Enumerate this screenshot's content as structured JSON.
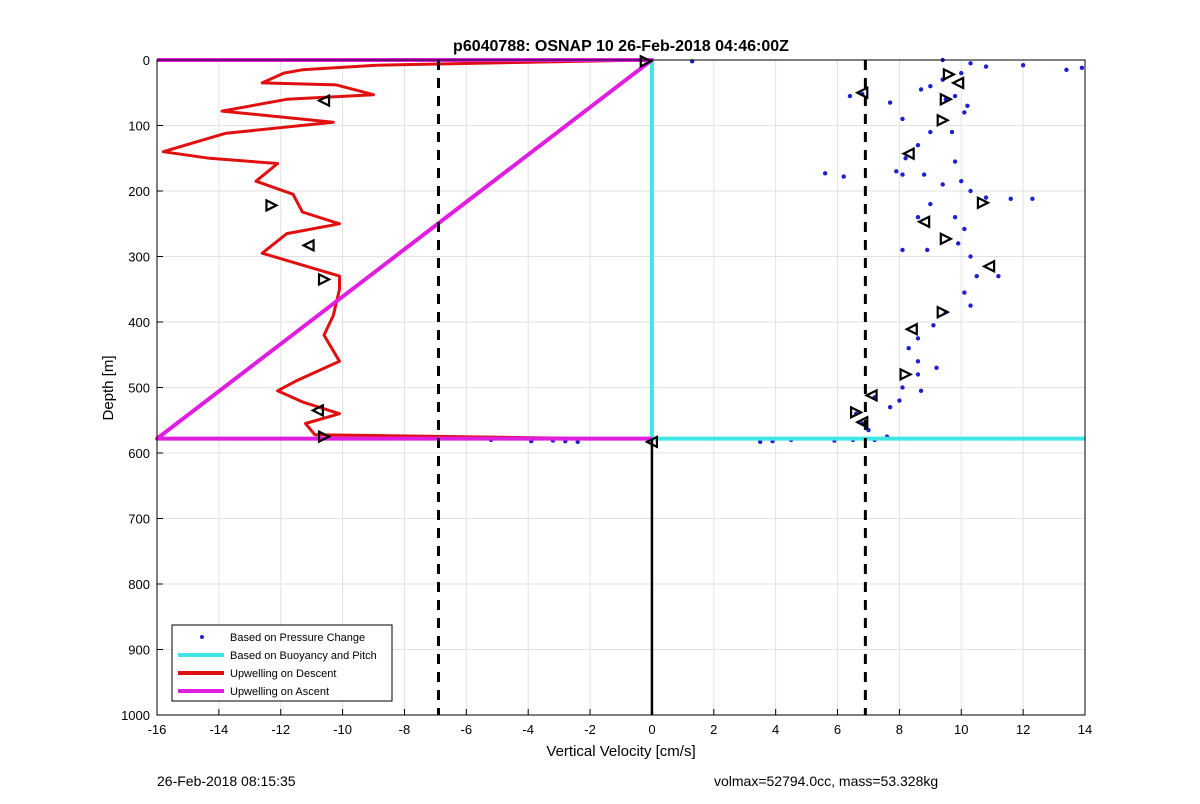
{
  "footer": {
    "timestamp": "26-Feb-2018 08:15:35",
    "info": "volmax=52794.0cc, mass=53.328kg"
  },
  "chart_data": {
    "type": "scatter",
    "title": "p6040788: OSNAP 10 26-Feb-2018 04:46:00Z",
    "xlabel": "Vertical Velocity [cm/s]",
    "ylabel": "Depth [m]",
    "xlim": [
      -16,
      14
    ],
    "ylim": [
      0,
      1000
    ],
    "y_reversed": true,
    "grid": true,
    "legend_position": "bottom-left",
    "xticks": [
      "-16",
      "-14",
      "-12",
      "-10",
      "-8",
      "-6",
      "-4",
      "-2",
      "0",
      "2",
      "4",
      "6",
      "8",
      "10",
      "12",
      "14"
    ],
    "yticks": [
      "0",
      "100",
      "200",
      "300",
      "400",
      "500",
      "600",
      "700",
      "800",
      "900",
      "1000"
    ],
    "reference_lines": {
      "dashed_x": [
        -6.9,
        6.9
      ],
      "solid_x_segment": {
        "x": 0,
        "y": [
          580,
          1000
        ]
      },
      "color": "#000000"
    },
    "series": [
      {
        "name": "Based on Pressure Change",
        "style": "dots",
        "color": "#1f1fd0",
        "points": [
          [
            9.4,
            0
          ],
          [
            10.3,
            5
          ],
          [
            1.3,
            2
          ],
          [
            12,
            8
          ],
          [
            13.4,
            15
          ],
          [
            13.9,
            12
          ],
          [
            10.8,
            10
          ],
          [
            9.4,
            30
          ],
          [
            10,
            20
          ],
          [
            9,
            40
          ],
          [
            8.7,
            45
          ],
          [
            9.8,
            55
          ],
          [
            7.7,
            65
          ],
          [
            9.5,
            60
          ],
          [
            10.2,
            70
          ],
          [
            6.8,
            52
          ],
          [
            6.4,
            55
          ],
          [
            10.1,
            80
          ],
          [
            8.1,
            90
          ],
          [
            9,
            110
          ],
          [
            9.7,
            110
          ],
          [
            8.6,
            130
          ],
          [
            8.2,
            150
          ],
          [
            9.8,
            155
          ],
          [
            7.9,
            170
          ],
          [
            8.8,
            175
          ],
          [
            5.6,
            173
          ],
          [
            6.2,
            178
          ],
          [
            8.1,
            175
          ],
          [
            10,
            185
          ],
          [
            9.4,
            190
          ],
          [
            10.8,
            210
          ],
          [
            10.3,
            200
          ],
          [
            11.6,
            212
          ],
          [
            12.3,
            212
          ],
          [
            9,
            220
          ],
          [
            8.6,
            240
          ],
          [
            9.8,
            240
          ],
          [
            10.1,
            258
          ],
          [
            8.1,
            290
          ],
          [
            8.9,
            290
          ],
          [
            9.9,
            280
          ],
          [
            10.3,
            300
          ],
          [
            10.5,
            330
          ],
          [
            11.2,
            330
          ],
          [
            10.1,
            355
          ],
          [
            10.3,
            375
          ],
          [
            9.5,
            385
          ],
          [
            9.1,
            405
          ],
          [
            8.6,
            425
          ],
          [
            8.3,
            440
          ],
          [
            8.6,
            460
          ],
          [
            9.2,
            470
          ],
          [
            8.6,
            480
          ],
          [
            8.1,
            500
          ],
          [
            8.7,
            505
          ],
          [
            8,
            520
          ],
          [
            7.2,
            515
          ],
          [
            7.7,
            530
          ],
          [
            6.6,
            540
          ],
          [
            6.8,
            555
          ],
          [
            7,
            565
          ],
          [
            7.6,
            575
          ],
          [
            7.2,
            580
          ],
          [
            6.5,
            580
          ],
          [
            5.9,
            581
          ],
          [
            3.5,
            583
          ],
          [
            3.9,
            582
          ],
          [
            4.5,
            580
          ],
          [
            -2.8,
            582
          ],
          [
            -3.2,
            581
          ],
          [
            -3.9,
            582
          ],
          [
            -5.2,
            580
          ],
          [
            -2.4,
            583
          ]
        ]
      },
      {
        "name": "Based on Buoyancy and Pitch",
        "style": "line",
        "color": "#3fe6e6",
        "points": [
          [
            0,
            0
          ],
          [
            0,
            578
          ],
          [
            14,
            578
          ]
        ]
      },
      {
        "name": "Upwelling on Descent",
        "style": "line",
        "color": "#e01010",
        "points": [
          [
            -0.2,
            0
          ],
          [
            -8.9,
            8
          ],
          [
            -11.3,
            15
          ],
          [
            -11.9,
            20
          ],
          [
            -12.6,
            35
          ],
          [
            -10.2,
            38
          ],
          [
            -9,
            53
          ],
          [
            -11.8,
            60
          ],
          [
            -13.9,
            78
          ],
          [
            -10.3,
            95
          ],
          [
            -13.8,
            112
          ],
          [
            -15.8,
            140
          ],
          [
            -14.3,
            150
          ],
          [
            -12.1,
            158
          ],
          [
            -12.8,
            185
          ],
          [
            -11.6,
            205
          ],
          [
            -11.3,
            232
          ],
          [
            -10.1,
            250
          ],
          [
            -11.8,
            265
          ],
          [
            -12.6,
            295
          ],
          [
            -10.1,
            330
          ],
          [
            -10.1,
            350
          ],
          [
            -10.3,
            390
          ],
          [
            -10.6,
            420
          ],
          [
            -10.1,
            460
          ],
          [
            -11.5,
            490
          ],
          [
            -12.1,
            505
          ],
          [
            -11.3,
            522
          ],
          [
            -10.1,
            540
          ],
          [
            -11.2,
            555
          ],
          [
            -10.9,
            572
          ],
          [
            -1.9,
            578
          ]
        ]
      },
      {
        "name": "Upwelling on Ascent",
        "style": "line",
        "color": "#e01ee0",
        "points": [
          [
            -16,
            0
          ],
          [
            0,
            0
          ],
          [
            -16,
            578
          ],
          [
            0,
            578
          ]
        ]
      }
    ],
    "markers": {
      "style": "triangles",
      "color": "#000000",
      "points": [
        [
          -0.2,
          2
        ],
        [
          -10.6,
          62
        ],
        [
          -12.3,
          222
        ],
        [
          -11.1,
          283
        ],
        [
          -10.6,
          335
        ],
        [
          -10.8,
          535
        ],
        [
          -10.6,
          575
        ],
        [
          0,
          583
        ],
        [
          9.6,
          22
        ],
        [
          9.9,
          35
        ],
        [
          9.5,
          60
        ],
        [
          6.8,
          50
        ],
        [
          9.4,
          92
        ],
        [
          8.3,
          143
        ],
        [
          10.7,
          218
        ],
        [
          8.8,
          247
        ],
        [
          9.5,
          273
        ],
        [
          10.9,
          315
        ],
        [
          9.4,
          385
        ],
        [
          8.4,
          411
        ],
        [
          8.2,
          480
        ],
        [
          7.1,
          512
        ],
        [
          6.6,
          538
        ],
        [
          6.8,
          553
        ]
      ]
    }
  }
}
